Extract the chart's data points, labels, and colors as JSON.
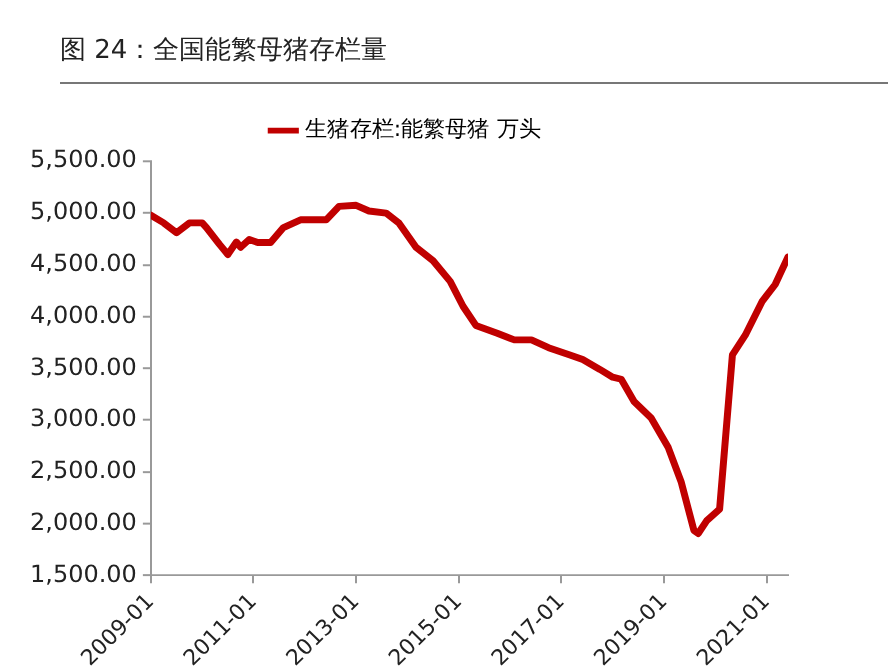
{
  "chart_data": {
    "type": "line",
    "title": "图 24：全国能繁母猪存栏量",
    "x": [
      "2009-01",
      "2009-04",
      "2009-07",
      "2009-10",
      "2010-01",
      "2010-02",
      "2010-05",
      "2010-07",
      "2010-09",
      "2010-10",
      "2010-12",
      "2011-02",
      "2011-05",
      "2011-08",
      "2011-12",
      "2012-06",
      "2012-09",
      "2013-01",
      "2013-04",
      "2013-08",
      "2013-11",
      "2014-03",
      "2014-07",
      "2014-11",
      "2015-02",
      "2015-05",
      "2015-10",
      "2016-02",
      "2016-06",
      "2016-10",
      "2017-03",
      "2017-06",
      "2017-10",
      "2018-01",
      "2018-03",
      "2018-06",
      "2018-10",
      "2019-02",
      "2019-05",
      "2019-08",
      "2019-09",
      "2019-11",
      "2020-02",
      "2020-05",
      "2020-08",
      "2020-12",
      "2021-03",
      "2021-06"
    ],
    "series": [
      {
        "name": "生猪存栏:能繁母猪 万头",
        "color": "#c00000",
        "values": [
          4980,
          4905,
          4810,
          4905,
          4905,
          4860,
          4700,
          4600,
          4720,
          4670,
          4745,
          4715,
          4715,
          4860,
          4935,
          4935,
          5065,
          5075,
          5020,
          5000,
          4905,
          4670,
          4540,
          4340,
          4100,
          3915,
          3840,
          3775,
          3775,
          3700,
          3630,
          3585,
          3490,
          3415,
          3395,
          3180,
          3020,
          2735,
          2405,
          1935,
          1905,
          2030,
          2140,
          3630,
          3820,
          4150,
          4310,
          4575
        ]
      }
    ],
    "xlim": [
      "2009-01",
      "2021-06"
    ],
    "xticks": [
      "2009-01",
      "2011-01",
      "2013-01",
      "2015-01",
      "2017-01",
      "2019-01",
      "2021-01"
    ],
    "ylim": [
      1500,
      5500
    ],
    "yticks": [
      {
        "value": 1500,
        "label": "1,500.00"
      },
      {
        "value": 2000,
        "label": "2,000.00"
      },
      {
        "value": 2500,
        "label": "2,500.00"
      },
      {
        "value": 3000,
        "label": "3,000.00"
      },
      {
        "value": 3500,
        "label": "3,500.00"
      },
      {
        "value": 4000,
        "label": "4,000.00"
      },
      {
        "value": 4500,
        "label": "4,500.00"
      },
      {
        "value": 5000,
        "label": "5,000.00"
      },
      {
        "value": 5500,
        "label": "5,500.00"
      }
    ],
    "grid": false,
    "legend": "top",
    "marker": "none",
    "line_style": "solid"
  }
}
